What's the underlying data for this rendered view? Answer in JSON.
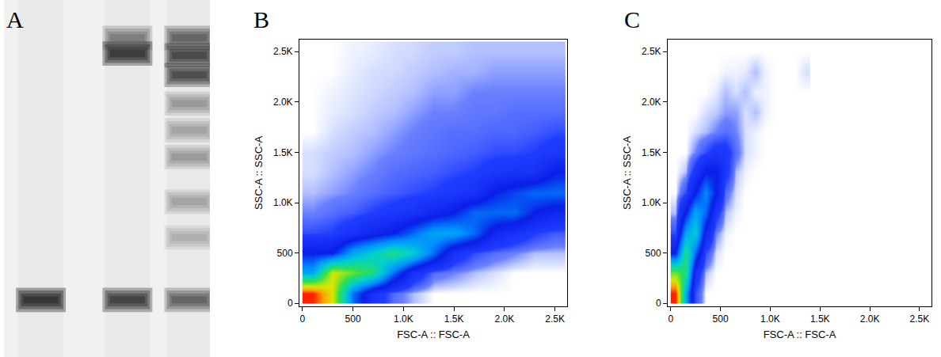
{
  "chart_data": [
    {
      "type": "gel",
      "panel_label": "A",
      "xlim": [
        0,
        100
      ],
      "ylim": [
        100,
        0
      ],
      "tick_labels": false,
      "lanes": [
        {
          "x": 18,
          "bands": [
            {
              "position": 84,
              "intensity": 1.0
            }
          ]
        },
        {
          "x": 60,
          "bands": [
            {
              "position": 10.6,
              "intensity": 0.45
            },
            {
              "position": 15,
              "intensity": 0.95
            },
            {
              "position": 84,
              "intensity": 0.85
            }
          ]
        },
        {
          "x": 90,
          "bands": [
            {
              "position": 10.6,
              "intensity": 0.6
            },
            {
              "position": 15.5,
              "intensity": 0.8
            },
            {
              "position": 21,
              "intensity": 0.75
            },
            {
              "position": 29,
              "intensity": 0.3
            },
            {
              "position": 36.5,
              "intensity": 0.25
            },
            {
              "position": 44,
              "intensity": 0.3
            },
            {
              "position": 56.5,
              "intensity": 0.25
            },
            {
              "position": 66.5,
              "intensity": 0.2
            },
            {
              "position": 84,
              "intensity": 0.6
            }
          ]
        }
      ]
    },
    {
      "type": "heatmap",
      "panel_label": "B",
      "x_label": "FSC-A :: FSC-A",
      "y_label": "SSC-A :: SSC-A",
      "xlim": [
        -30,
        2620
      ],
      "ylim": [
        -30,
        2620
      ],
      "xticks": [
        0,
        500,
        {
          "value": 1000,
          "label": "1.0K"
        },
        {
          "value": 1500,
          "label": "1.5K"
        },
        {
          "value": 2000,
          "label": "2.0K"
        },
        {
          "value": 2500,
          "label": "2.5K"
        }
      ],
      "yticks": [
        0,
        500,
        {
          "value": 1000,
          "label": "1.0K"
        },
        {
          "value": 1500,
          "label": "1.5K"
        },
        {
          "value": 2000,
          "label": "2.0K"
        },
        {
          "value": 2500,
          "label": "2.5K"
        }
      ],
      "zlim": [
        0,
        10
      ],
      "x": [
        100,
        300,
        500,
        700,
        900,
        1100,
        1300,
        1500,
        1700,
        1900,
        2100,
        2300,
        2500
      ],
      "y": [
        100,
        300,
        500,
        700,
        900,
        1100,
        1300,
        1500,
        1700,
        1900,
        2100,
        2300,
        2500
      ],
      "cells": [
        [
          10,
          8,
          3,
          1,
          0.3,
          0.1,
          0,
          0,
          0,
          0,
          0,
          0,
          0
        ],
        [
          4,
          8,
          7,
          6,
          3,
          1,
          0.3,
          0.2,
          0.1,
          0.05,
          0,
          0,
          0
        ],
        [
          2,
          2,
          4,
          5,
          6,
          5,
          3,
          1,
          0.5,
          0.3,
          0.2,
          0.1,
          0.1
        ],
        [
          0.5,
          0.6,
          1,
          1.5,
          2,
          3,
          4,
          4,
          3,
          1.5,
          1,
          0.6,
          0.4
        ],
        [
          0.2,
          0.3,
          0.4,
          0.6,
          0.8,
          1,
          1.5,
          2,
          3,
          3,
          3,
          2,
          1.5
        ],
        [
          0.1,
          0.15,
          0.2,
          0.3,
          0.4,
          0.5,
          0.6,
          0.8,
          1,
          2,
          2.5,
          3,
          3
        ],
        [
          0.05,
          0.1,
          0.15,
          0.2,
          0.3,
          0.35,
          0.4,
          0.5,
          0.6,
          0.8,
          1,
          1,
          2
        ],
        [
          0.05,
          0.08,
          0.1,
          0.15,
          0.2,
          0.25,
          0.3,
          0.35,
          0.4,
          0.5,
          0.5,
          0.6,
          0.8
        ],
        [
          0,
          0.05,
          0.08,
          0.1,
          0.15,
          0.2,
          0.25,
          0.3,
          0.3,
          0.35,
          0.35,
          0.4,
          0.5
        ],
        [
          0,
          0.03,
          0.05,
          0.08,
          0.1,
          0.15,
          0.2,
          0.2,
          0.25,
          0.25,
          0.3,
          0.3,
          0.3
        ],
        [
          0,
          0.02,
          0.04,
          0.06,
          0.08,
          0.1,
          0.15,
          0.15,
          0.2,
          0.2,
          0.2,
          0.2,
          0.2
        ],
        [
          0,
          0,
          0.03,
          0.05,
          0.06,
          0.08,
          0.1,
          0.12,
          0.12,
          0.15,
          0.15,
          0.15,
          0.15
        ],
        [
          0,
          0,
          0.02,
          0.03,
          0.05,
          0.06,
          0.08,
          0.08,
          0.1,
          0.1,
          0.1,
          0.1,
          0.1
        ]
      ]
    },
    {
      "type": "heatmap",
      "panel_label": "C",
      "x_label": "FSC-A :: FSC-A",
      "y_label": "SSC-A :: SSC-A",
      "xlim": [
        -30,
        2620
      ],
      "ylim": [
        -30,
        2620
      ],
      "xticks": [
        0,
        500,
        {
          "value": 1000,
          "label": "1.0K"
        },
        {
          "value": 1500,
          "label": "1.5K"
        },
        {
          "value": 2000,
          "label": "2.0K"
        },
        {
          "value": 2500,
          "label": "2.5K"
        }
      ],
      "yticks": [
        0,
        500,
        {
          "value": 1000,
          "label": "1.0K"
        },
        {
          "value": 1500,
          "label": "1.5K"
        },
        {
          "value": 2000,
          "label": "2.0K"
        },
        {
          "value": 2500,
          "label": "2.5K"
        }
      ],
      "zlim": [
        0,
        10
      ],
      "x": [
        50,
        150,
        250,
        350,
        450,
        550,
        650,
        750,
        850,
        950,
        1050,
        1150,
        1250,
        1350
      ],
      "y": [
        100,
        300,
        500,
        700,
        900,
        1100,
        1300,
        1500,
        1700,
        1900,
        2100,
        2300,
        2500
      ],
      "cells": [
        [
          10,
          4,
          0.5,
          0,
          0,
          0,
          0,
          0,
          0,
          0,
          0,
          0,
          0,
          0
        ],
        [
          7,
          6,
          1,
          0.1,
          0,
          0,
          0,
          0,
          0,
          0,
          0,
          0,
          0,
          0
        ],
        [
          2,
          6,
          3,
          0.5,
          0.05,
          0,
          0,
          0,
          0,
          0,
          0,
          0,
          0,
          0
        ],
        [
          0.5,
          4,
          5,
          1.5,
          0.2,
          0.02,
          0,
          0,
          0,
          0,
          0,
          0,
          0,
          0
        ],
        [
          0.1,
          2,
          4,
          3,
          0.8,
          0.1,
          0.02,
          0,
          0,
          0,
          0,
          0,
          0,
          0
        ],
        [
          0,
          0.5,
          2,
          3.5,
          2,
          0.3,
          0.05,
          0,
          0,
          0,
          0,
          0,
          0,
          0
        ],
        [
          0,
          0.1,
          0.8,
          2,
          2,
          0.8,
          0.1,
          0.02,
          0,
          0,
          0,
          0,
          0,
          0
        ],
        [
          0,
          0,
          0.2,
          0.5,
          0.8,
          0.8,
          0.3,
          0.05,
          0.02,
          0,
          0,
          0,
          0,
          0
        ],
        [
          0,
          0,
          0.05,
          0.1,
          0.2,
          0.3,
          0.2,
          0.05,
          0.02,
          0,
          0,
          0,
          0,
          0
        ],
        [
          0,
          0,
          0,
          0.05,
          0.08,
          0.15,
          0.15,
          0.05,
          0.1,
          0.02,
          0,
          0,
          0,
          0
        ],
        [
          0,
          0,
          0,
          0,
          0.03,
          0.1,
          0.05,
          0.1,
          0.02,
          0.02,
          0,
          0,
          0,
          0
        ],
        [
          0,
          0,
          0,
          0,
          0,
          0.02,
          0.02,
          0.03,
          0.1,
          0.02,
          0,
          0,
          0,
          0.05
        ],
        [
          0,
          0,
          0,
          0,
          0,
          0,
          0,
          0,
          0,
          0,
          0,
          0,
          0,
          0
        ]
      ]
    }
  ]
}
